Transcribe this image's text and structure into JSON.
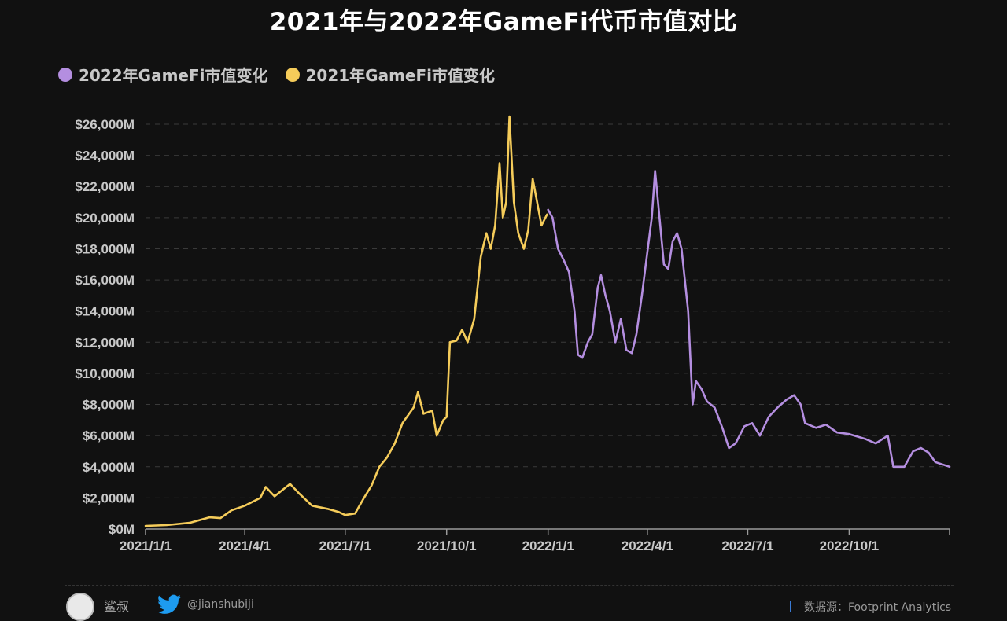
{
  "title": "2021年与2022年GameFi代币市值对比",
  "footer": {
    "author": "鲨叔",
    "handle": "@jianshubiji",
    "source": "数据源：Footprint Analytics"
  },
  "colors": {
    "series_2022": "#b48ee0",
    "series_2021": "#f5cc5a",
    "background": "#111111",
    "grid": "#3a3a3a",
    "text": "#c8c8c8"
  },
  "chart_data": {
    "type": "line",
    "ylim": [
      0,
      26000
    ],
    "y_unit": "M",
    "yticks": [
      "$0M",
      "$2,000M",
      "$4,000M",
      "$6,000M",
      "$8,000M",
      "$10,000M",
      "$12,000M",
      "$14,000M",
      "$16,000M",
      "$18,000M",
      "$20,000M",
      "$22,000M",
      "$24,000M",
      "$26,000M"
    ],
    "xticks": [
      "2021/1/1",
      "2021/4/1",
      "2021/7/1",
      "2021/10/1",
      "2022/1/1",
      "2022/4/1",
      "2022/7/1",
      "2022/10/1"
    ],
    "xrange": [
      "2021/1/1",
      "2022/12/31"
    ],
    "grid": true,
    "legend_position": "top-left",
    "series": [
      {
        "name": "2022年GameFi市值变化",
        "color": "#b48ee0",
        "points": [
          [
            "2022/1/1",
            20500
          ],
          [
            "2022/1/5",
            20000
          ],
          [
            "2022/1/10",
            18000
          ],
          [
            "2022/1/15",
            17300
          ],
          [
            "2022/1/20",
            16500
          ],
          [
            "2022/1/25",
            14000
          ],
          [
            "2022/1/28",
            11200
          ],
          [
            "2022/2/1",
            11000
          ],
          [
            "2022/2/6",
            12000
          ],
          [
            "2022/2/10",
            12500
          ],
          [
            "2022/2/15",
            15500
          ],
          [
            "2022/2/18",
            16300
          ],
          [
            "2022/2/22",
            15000
          ],
          [
            "2022/2/26",
            14000
          ],
          [
            "2022/3/3",
            12000
          ],
          [
            "2022/3/8",
            13500
          ],
          [
            "2022/3/13",
            11500
          ],
          [
            "2022/3/18",
            11300
          ],
          [
            "2022/3/22",
            12500
          ],
          [
            "2022/3/27",
            15000
          ],
          [
            "2022/4/1",
            17800
          ],
          [
            "2022/4/5",
            20000
          ],
          [
            "2022/4/8",
            23000
          ],
          [
            "2022/4/12",
            20000
          ],
          [
            "2022/4/16",
            17000
          ],
          [
            "2022/4/20",
            16700
          ],
          [
            "2022/4/24",
            18500
          ],
          [
            "2022/4/28",
            19000
          ],
          [
            "2022/5/2",
            18000
          ],
          [
            "2022/5/5",
            16000
          ],
          [
            "2022/5/8",
            14000
          ],
          [
            "2022/5/10",
            11000
          ],
          [
            "2022/5/12",
            8000
          ],
          [
            "2022/5/15",
            9500
          ],
          [
            "2022/5/20",
            9000
          ],
          [
            "2022/5/25",
            8200
          ],
          [
            "2022/6/1",
            7800
          ],
          [
            "2022/6/8",
            6500
          ],
          [
            "2022/6/14",
            5200
          ],
          [
            "2022/6/20",
            5500
          ],
          [
            "2022/6/28",
            6600
          ],
          [
            "2022/7/5",
            6800
          ],
          [
            "2022/7/12",
            6000
          ],
          [
            "2022/7/20",
            7200
          ],
          [
            "2022/7/28",
            7800
          ],
          [
            "2022/8/5",
            8300
          ],
          [
            "2022/8/12",
            8600
          ],
          [
            "2022/8/18",
            8000
          ],
          [
            "2022/8/22",
            6800
          ],
          [
            "2022/9/1",
            6500
          ],
          [
            "2022/9/10",
            6700
          ],
          [
            "2022/9/20",
            6200
          ],
          [
            "2022/10/1",
            6100
          ],
          [
            "2022/10/15",
            5800
          ],
          [
            "2022/10/25",
            5500
          ],
          [
            "2022/11/5",
            6000
          ],
          [
            "2022/11/10",
            4000
          ],
          [
            "2022/11/20",
            4000
          ],
          [
            "2022/11/28",
            5000
          ],
          [
            "2022/12/5",
            5200
          ],
          [
            "2022/12/12",
            4900
          ],
          [
            "2022/12/18",
            4300
          ],
          [
            "2022/12/31",
            4000
          ]
        ]
      },
      {
        "name": "2021年GameFi市值变化",
        "color": "#f5cc5a",
        "points": [
          [
            "2021/1/1",
            200
          ],
          [
            "2021/1/20",
            250
          ],
          [
            "2021/2/10",
            400
          ],
          [
            "2021/2/28",
            750
          ],
          [
            "2021/3/10",
            700
          ],
          [
            "2021/3/20",
            1200
          ],
          [
            "2021/4/1",
            1500
          ],
          [
            "2021/4/15",
            2000
          ],
          [
            "2021/4/20",
            2700
          ],
          [
            "2021/4/28",
            2100
          ],
          [
            "2021/5/5",
            2500
          ],
          [
            "2021/5/12",
            2900
          ],
          [
            "2021/5/20",
            2300
          ],
          [
            "2021/6/1",
            1500
          ],
          [
            "2021/6/15",
            1300
          ],
          [
            "2021/6/25",
            1100
          ],
          [
            "2021/7/1",
            900
          ],
          [
            "2021/7/10",
            1000
          ],
          [
            "2021/7/18",
            2000
          ],
          [
            "2021/7/25",
            2800
          ],
          [
            "2021/8/1",
            4000
          ],
          [
            "2021/8/8",
            4600
          ],
          [
            "2021/8/15",
            5500
          ],
          [
            "2021/8/22",
            6800
          ],
          [
            "2021/9/1",
            7800
          ],
          [
            "2021/9/5",
            8800
          ],
          [
            "2021/9/10",
            7400
          ],
          [
            "2021/9/18",
            7600
          ],
          [
            "2021/9/22",
            6000
          ],
          [
            "2021/9/28",
            7000
          ],
          [
            "2021/10/1",
            7200
          ],
          [
            "2021/10/4",
            12000
          ],
          [
            "2021/10/10",
            12100
          ],
          [
            "2021/10/15",
            12800
          ],
          [
            "2021/10/20",
            12000
          ],
          [
            "2021/10/26",
            13500
          ],
          [
            "2021/11/1",
            17500
          ],
          [
            "2021/11/6",
            19000
          ],
          [
            "2021/11/10",
            18000
          ],
          [
            "2021/11/14",
            19500
          ],
          [
            "2021/11/18",
            23500
          ],
          [
            "2021/11/21",
            20000
          ],
          [
            "2021/11/24",
            21000
          ],
          [
            "2021/11/27",
            26500
          ],
          [
            "2021/12/1",
            21000
          ],
          [
            "2021/12/5",
            19000
          ],
          [
            "2021/12/10",
            18000
          ],
          [
            "2021/12/14",
            19200
          ],
          [
            "2021/12/18",
            22500
          ],
          [
            "2021/12/22",
            21000
          ],
          [
            "2021/12/26",
            19500
          ],
          [
            "2021/12/31",
            20200
          ]
        ]
      }
    ]
  }
}
